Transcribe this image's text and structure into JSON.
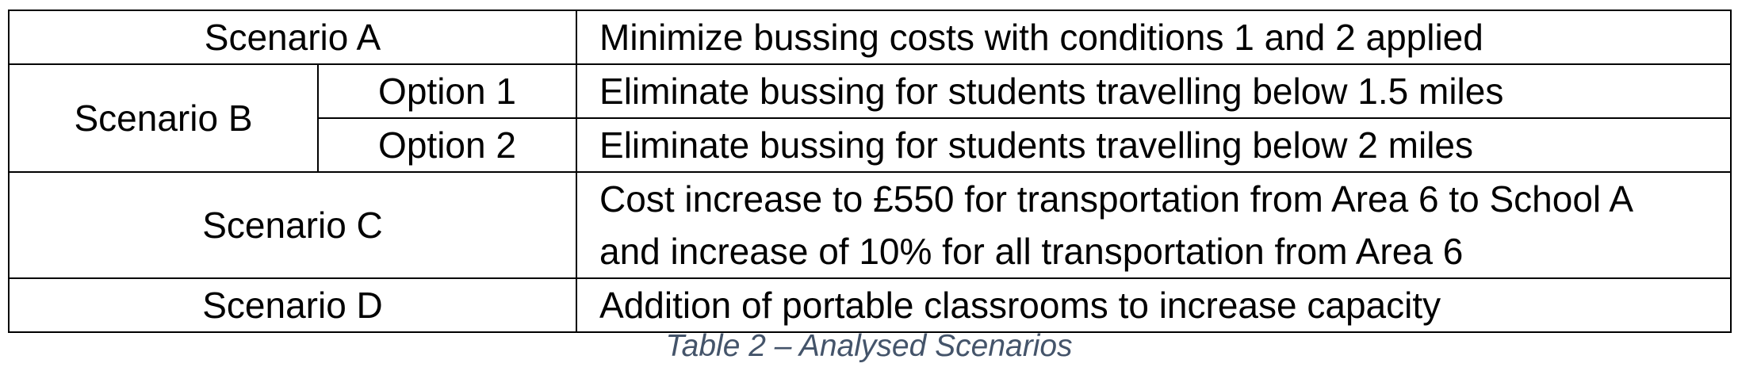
{
  "table": {
    "rows": {
      "a": {
        "name": "Scenario A",
        "description": "Minimize bussing costs with conditions 1 and 2 applied"
      },
      "b": {
        "name": "Scenario B",
        "options": [
          {
            "label": "Option 1",
            "description": "Eliminate bussing for students travelling below 1.5 miles"
          },
          {
            "label": "Option 2",
            "description": "Eliminate bussing for students travelling below 2 miles"
          }
        ]
      },
      "c": {
        "name": "Scenario C",
        "description_lines": [
          "Cost increase to £550 for transportation from Area 6 to School A",
          "and increase of 10% for all transportation from Area 6"
        ]
      },
      "d": {
        "name": "Scenario D",
        "description": "Addition of portable classrooms to increase capacity"
      }
    }
  },
  "caption": "Table 2 – Analysed Scenarios",
  "colors": {
    "caption": "#44546a",
    "border": "#000000"
  }
}
